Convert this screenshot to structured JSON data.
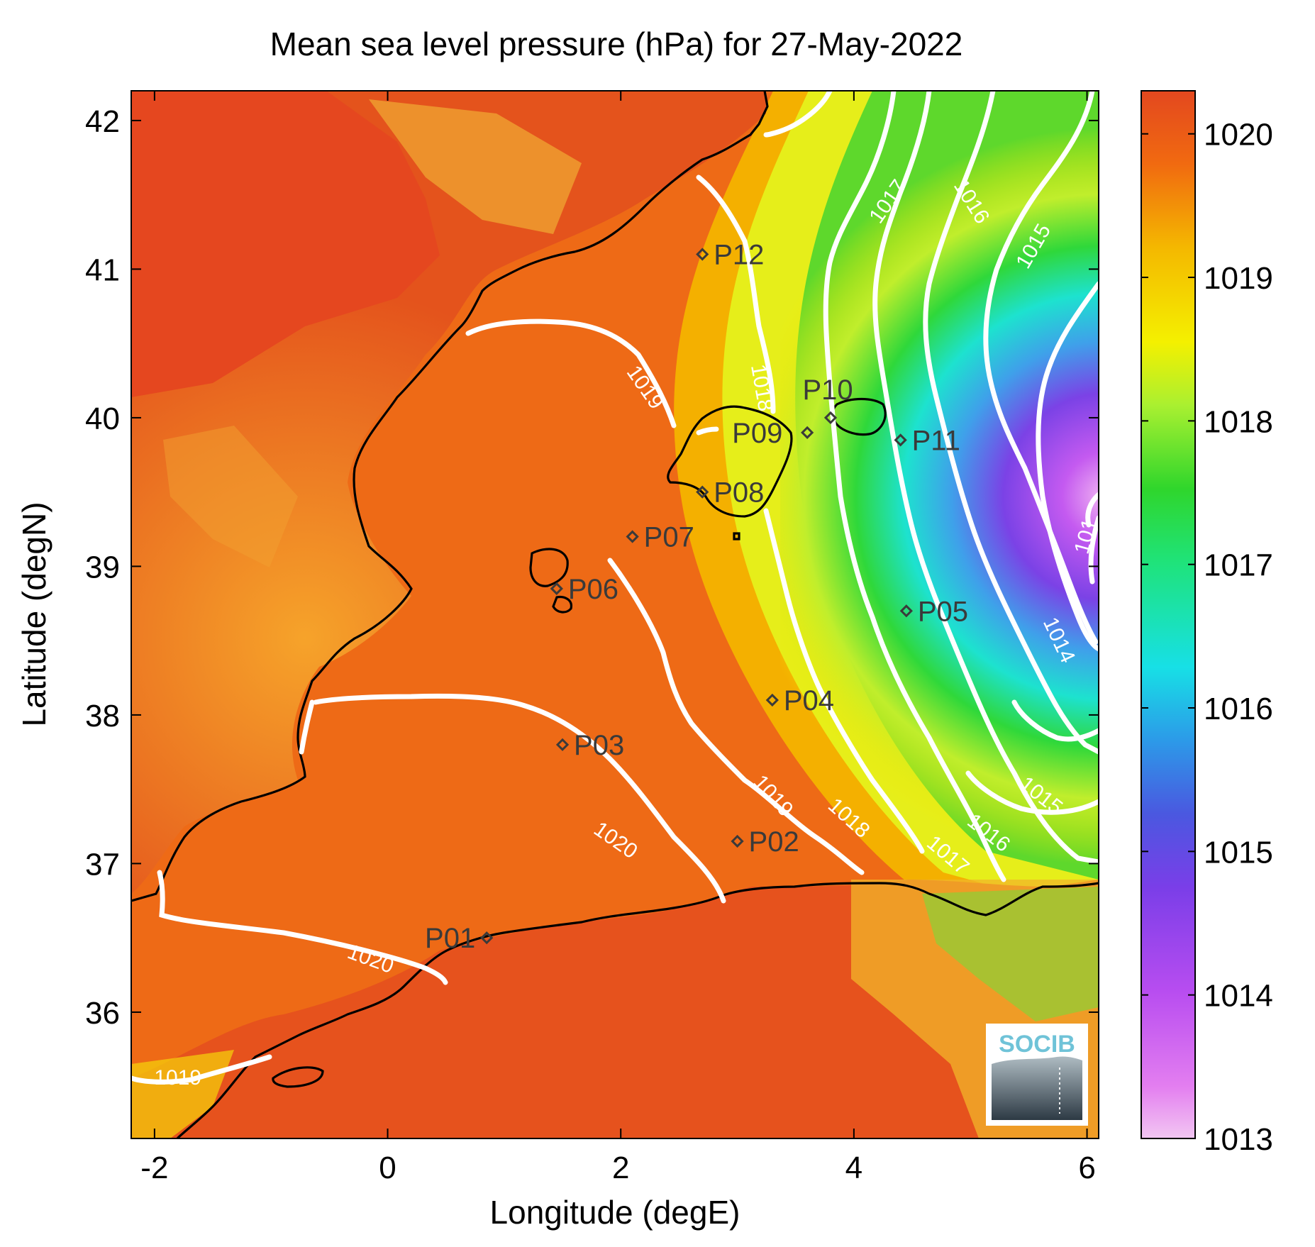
{
  "title": "Mean sea level pressure (hPa) for 27-May-2022",
  "xlabel": "Longitude (degE)",
  "ylabel": "Latitude (degN)",
  "x_ticks": [
    "-2",
    "0",
    "2",
    "4",
    "6"
  ],
  "y_ticks": [
    "42",
    "41",
    "40",
    "39",
    "38",
    "37",
    "36"
  ],
  "colorbar": {
    "ticks": [
      "1020",
      "1019",
      "1018",
      "1017",
      "1016",
      "1015",
      "1014",
      "1013"
    ],
    "min": 1013,
    "max": 1020.3
  },
  "extent": {
    "lon": [
      -2.2,
      6.1
    ],
    "lat": [
      35.15,
      42.2
    ]
  },
  "contour_labels": [
    {
      "text": "1017",
      "lon": 4.3,
      "lat": 41.45,
      "rot": -55
    },
    {
      "text": "1016",
      "lon": 5.0,
      "lat": 41.45,
      "rot": 58
    },
    {
      "text": "1015",
      "lon": 5.55,
      "lat": 41.15,
      "rot": -60
    },
    {
      "text": "1019",
      "lon": 2.2,
      "lat": 40.2,
      "rot": 55
    },
    {
      "text": "1018",
      "lon": 3.2,
      "lat": 40.2,
      "rot": 80
    },
    {
      "text": "1014",
      "lon": 5.75,
      "lat": 38.5,
      "rot": 65
    },
    {
      "text": "1015",
      "lon": 5.6,
      "lat": 37.45,
      "rot": 38
    },
    {
      "text": "1016",
      "lon": 5.15,
      "lat": 37.2,
      "rot": 38
    },
    {
      "text": "1017",
      "lon": 4.8,
      "lat": 37.05,
      "rot": 40
    },
    {
      "text": "1018",
      "lon": 3.95,
      "lat": 37.3,
      "rot": 42
    },
    {
      "text": "1019",
      "lon": 3.3,
      "lat": 37.45,
      "rot": 48
    },
    {
      "text": "1020",
      "lon": 1.95,
      "lat": 37.15,
      "rot": 35
    },
    {
      "text": "1020",
      "lon": -0.15,
      "lat": 36.35,
      "rot": 20
    },
    {
      "text": "1019",
      "lon": -1.8,
      "lat": 35.55,
      "rot": 0
    },
    {
      "text": "101",
      "lon": 6.0,
      "lat": 39.2,
      "rot": -75
    }
  ],
  "stations": [
    {
      "name": "P01",
      "lon": 0.85,
      "lat": 36.5,
      "side": "left"
    },
    {
      "name": "P02",
      "lon": 3.0,
      "lat": 37.15,
      "side": "right"
    },
    {
      "name": "P03",
      "lon": 1.5,
      "lat": 37.8,
      "side": "right"
    },
    {
      "name": "P04",
      "lon": 3.3,
      "lat": 38.1,
      "side": "right"
    },
    {
      "name": "P05",
      "lon": 4.45,
      "lat": 38.7,
      "side": "right"
    },
    {
      "name": "P06",
      "lon": 1.45,
      "lat": 38.85,
      "side": "right"
    },
    {
      "name": "P07",
      "lon": 2.1,
      "lat": 39.2,
      "side": "right"
    },
    {
      "name": "P08",
      "lon": 2.7,
      "lat": 39.5,
      "side": "right"
    },
    {
      "name": "P09",
      "lon": 3.6,
      "lat": 39.9,
      "side": "leftover"
    },
    {
      "name": "P10",
      "lon": 3.8,
      "lat": 40.0,
      "side": "above"
    },
    {
      "name": "P11",
      "lon": 4.4,
      "lat": 39.85,
      "side": "right"
    },
    {
      "name": "P12",
      "lon": 2.7,
      "lat": 41.1,
      "side": "right"
    }
  ],
  "logo_text": "SOCIB"
}
